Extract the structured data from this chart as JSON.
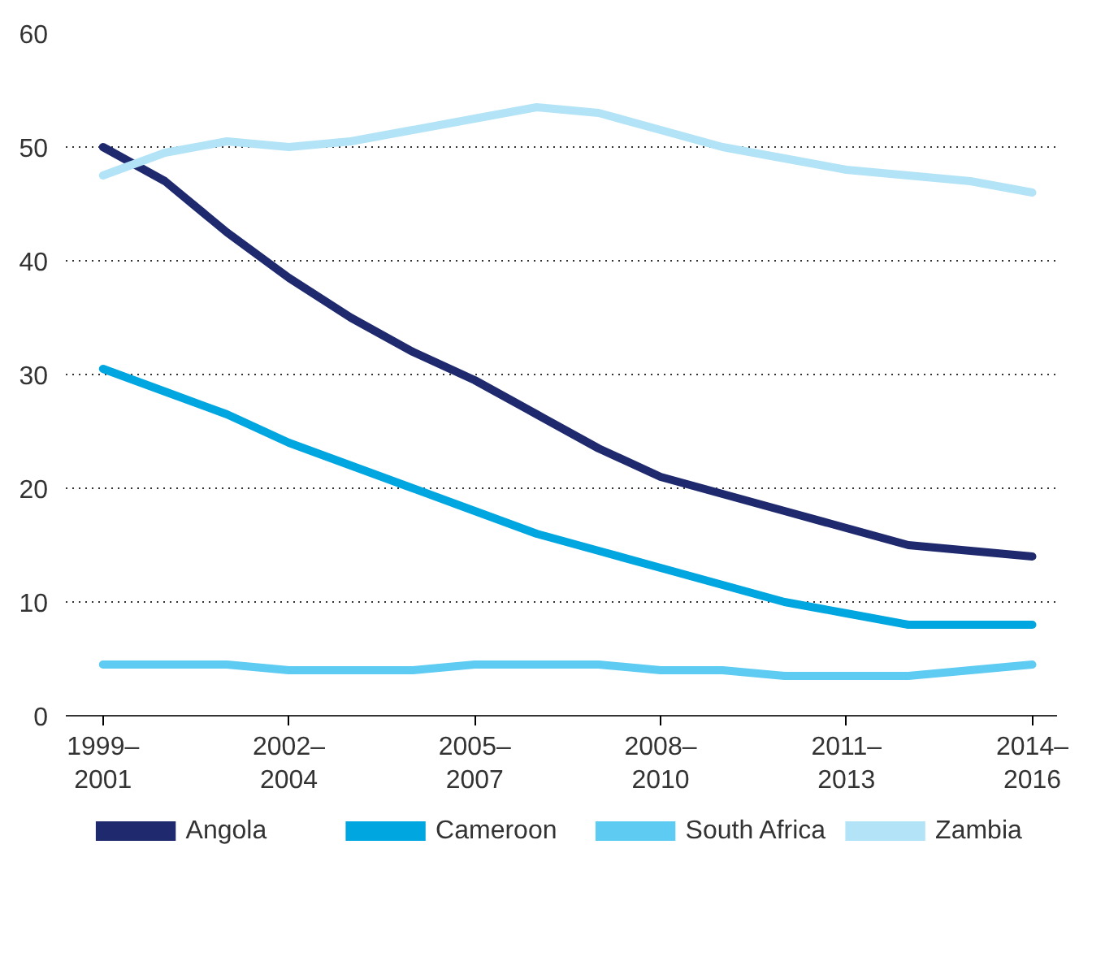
{
  "chart_data": {
    "type": "line",
    "categories": [
      "1999–\n2001",
      null,
      null,
      "2002–\n2004",
      null,
      null,
      "2005–\n2007",
      null,
      null,
      "2008–\n2010",
      null,
      null,
      "2011–\n2013",
      null,
      null,
      "2014–\n2016"
    ],
    "series": [
      {
        "name": "Angola",
        "color": "#1f2a6e",
        "values": [
          50,
          47,
          42.5,
          38.5,
          35,
          32,
          29.5,
          26.5,
          23.5,
          21,
          19.5,
          18,
          16.5,
          15,
          14.5,
          14
        ]
      },
      {
        "name": "Cameroon",
        "color": "#00a6e0",
        "values": [
          30.5,
          28.5,
          26.5,
          24,
          22,
          20,
          18,
          16,
          14.5,
          13,
          11.5,
          10,
          9,
          8,
          8,
          8
        ]
      },
      {
        "name": "South Africa",
        "color": "#5ecbf2",
        "values": [
          4.5,
          4.5,
          4.5,
          4,
          4,
          4,
          4.5,
          4.5,
          4.5,
          4,
          4,
          3.5,
          3.5,
          3.5,
          4,
          4.5
        ]
      },
      {
        "name": "Zambia",
        "color": "#b3e3f7",
        "values": [
          47.5,
          49.5,
          50.5,
          50,
          50.5,
          51.5,
          52.5,
          53.5,
          53,
          51.5,
          50,
          49,
          48,
          47.5,
          47,
          46
        ]
      }
    ],
    "ylim": [
      0,
      60
    ],
    "yticks": [
      0,
      10,
      20,
      30,
      40,
      50,
      60
    ],
    "grid": "y",
    "legend": "bottom",
    "line_style": "solid"
  }
}
